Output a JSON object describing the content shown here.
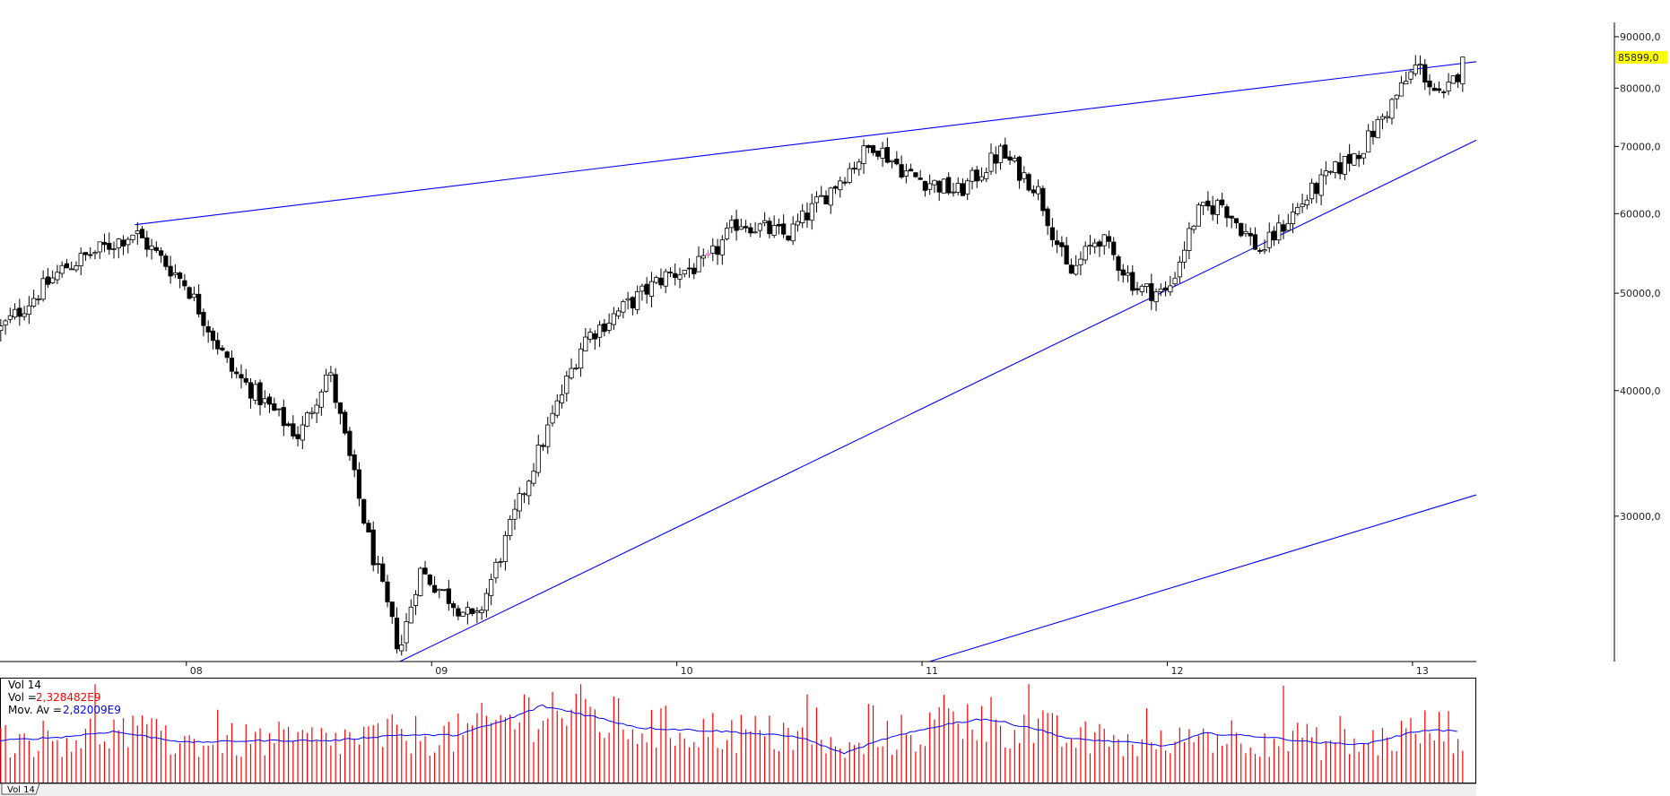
{
  "chart_data": [
    {
      "type": "candlestick",
      "scale": "log",
      "ylim": [
        21500,
        93000
      ],
      "y_ticks": [
        90000,
        80000,
        70000,
        60000,
        50000,
        40000,
        30000
      ],
      "y_tick_labels": [
        "90000,0",
        "80000,0",
        "70000,0",
        "60000,0",
        "50000,0",
        "40000,0",
        "30000,0"
      ],
      "x_range": [
        2007.24,
        2013.26
      ],
      "x_ticks": [
        2008,
        2009,
        2010,
        2011,
        2012,
        2013
      ],
      "x_tick_labels": [
        "08",
        "09",
        "10",
        "11",
        "12",
        "13"
      ],
      "last_price": 85899,
      "last_price_label": "85899,0",
      "key_closes": [
        {
          "date": 2007.24,
          "price": 46000
        },
        {
          "date": 2007.5,
          "price": 53000
        },
        {
          "date": 2007.79,
          "price": 57500
        },
        {
          "date": 2008.0,
          "price": 51000
        },
        {
          "date": 2008.18,
          "price": 42000
        },
        {
          "date": 2008.46,
          "price": 36000
        },
        {
          "date": 2008.58,
          "price": 42000
        },
        {
          "date": 2008.75,
          "price": 28000
        },
        {
          "date": 2008.87,
          "price": 22000
        },
        {
          "date": 2008.95,
          "price": 26500
        },
        {
          "date": 2009.18,
          "price": 23500
        },
        {
          "date": 2009.4,
          "price": 33000
        },
        {
          "date": 2009.62,
          "price": 45000
        },
        {
          "date": 2009.95,
          "price": 52000
        },
        {
          "date": 2010.12,
          "price": 53500
        },
        {
          "date": 2010.25,
          "price": 59000
        },
        {
          "date": 2010.45,
          "price": 57000
        },
        {
          "date": 2010.8,
          "price": 70500
        },
        {
          "date": 2010.95,
          "price": 65500
        },
        {
          "date": 2011.15,
          "price": 63000
        },
        {
          "date": 2011.32,
          "price": 69000
        },
        {
          "date": 2011.47,
          "price": 63500
        },
        {
          "date": 2011.6,
          "price": 52000
        },
        {
          "date": 2011.72,
          "price": 57000
        },
        {
          "date": 2011.88,
          "price": 50500
        },
        {
          "date": 2012.0,
          "price": 50000
        },
        {
          "date": 2012.12,
          "price": 60000
        },
        {
          "date": 2012.22,
          "price": 61500
        },
        {
          "date": 2012.38,
          "price": 55000
        },
        {
          "date": 2012.6,
          "price": 63500
        },
        {
          "date": 2012.8,
          "price": 70000
        },
        {
          "date": 2013.02,
          "price": 84500
        },
        {
          "date": 2013.12,
          "price": 77500
        },
        {
          "date": 2013.22,
          "price": 85899
        }
      ],
      "trendlines": [
        {
          "from": {
            "date": 2007.79,
            "price": 58500
          },
          "to": {
            "date": 2013.26,
            "price": 85000
          }
        },
        {
          "from": {
            "date": 2008.87,
            "price": 21500
          },
          "to": {
            "date": 2013.26,
            "price": 71000
          }
        },
        {
          "from": {
            "date": 2011.03,
            "price": 21500
          },
          "to": {
            "date": 2013.26,
            "price": 31500
          }
        }
      ],
      "highlight_candle": {
        "date": 2010.13,
        "color": "#ff40ff"
      }
    },
    {
      "type": "bar",
      "title": "Vol 14",
      "series": [
        {
          "name": "Vol",
          "label": "Vol =",
          "value_text": "2,328482E9",
          "color": "#ff0000"
        },
        {
          "name": "Mov. Av",
          "label": "Mov. Av =",
          "value_text": "2,82009E9",
          "color": "#0000ff"
        }
      ],
      "moving_average_profile": [
        {
          "date": 2007.24,
          "value": 2.3
        },
        {
          "date": 2007.5,
          "value": 2.5
        },
        {
          "date": 2007.7,
          "value": 2.8
        },
        {
          "date": 2008.0,
          "value": 2.2
        },
        {
          "date": 2008.3,
          "value": 2.3
        },
        {
          "date": 2008.6,
          "value": 2.3
        },
        {
          "date": 2008.85,
          "value": 2.6
        },
        {
          "date": 2009.1,
          "value": 2.6
        },
        {
          "date": 2009.3,
          "value": 3.4
        },
        {
          "date": 2009.45,
          "value": 4.2
        },
        {
          "date": 2009.6,
          "value": 3.8
        },
        {
          "date": 2009.85,
          "value": 3.0
        },
        {
          "date": 2010.2,
          "value": 2.8
        },
        {
          "date": 2010.5,
          "value": 2.5
        },
        {
          "date": 2010.68,
          "value": 1.6
        },
        {
          "date": 2010.85,
          "value": 2.4
        },
        {
          "date": 2011.1,
          "value": 3.2
        },
        {
          "date": 2011.25,
          "value": 3.5
        },
        {
          "date": 2011.45,
          "value": 3.0
        },
        {
          "date": 2011.6,
          "value": 2.4
        },
        {
          "date": 2011.85,
          "value": 2.2
        },
        {
          "date": 2012.0,
          "value": 2.0
        },
        {
          "date": 2012.15,
          "value": 2.7
        },
        {
          "date": 2012.4,
          "value": 2.5
        },
        {
          "date": 2012.6,
          "value": 2.2
        },
        {
          "date": 2012.8,
          "value": 2.1
        },
        {
          "date": 2013.05,
          "value": 2.9
        },
        {
          "date": 2013.2,
          "value": 2.8
        }
      ],
      "ylim": [
        0,
        5.5
      ]
    }
  ],
  "ui": {
    "tab_label": "Vol 14",
    "colors": {
      "trendline": "#0000ff",
      "candle_up_fill": "#ffffff",
      "candle_down_fill": "#000000",
      "last_price_bg": "#ffff00",
      "volume_bar": "#ff0000",
      "moving_average": "#0000ff"
    }
  }
}
